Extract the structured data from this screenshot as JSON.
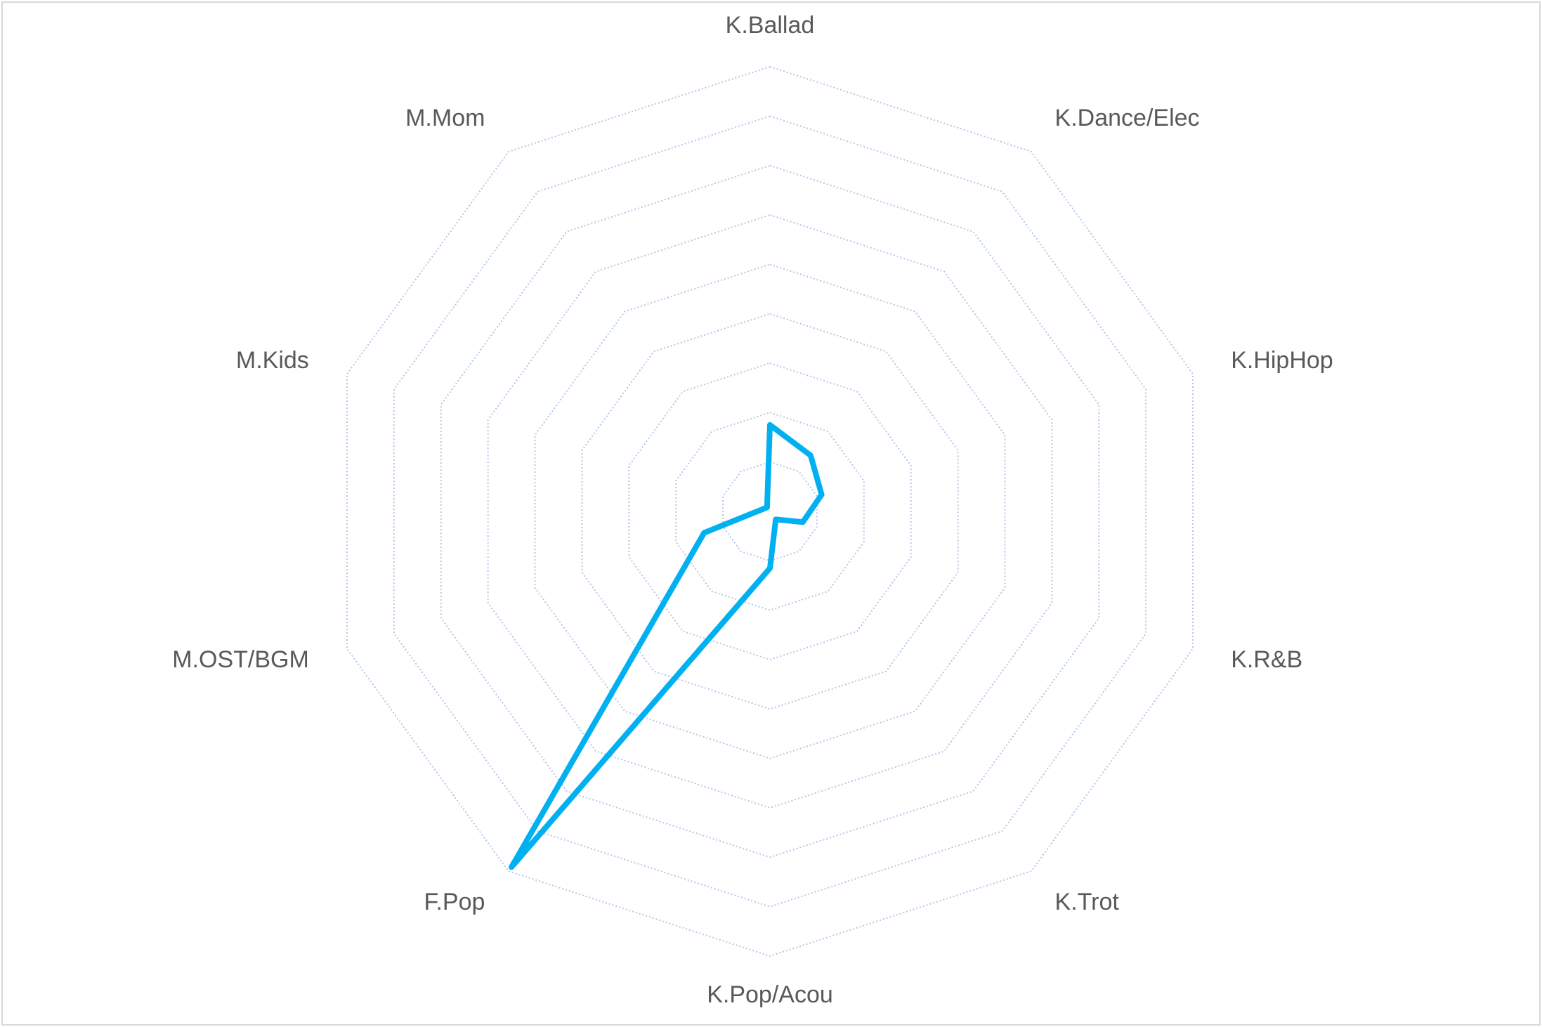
{
  "chart_data": {
    "type": "radar",
    "categories": [
      "K.Ballad",
      "K.Dance/Elec",
      "K.HipHop",
      "K.R&B",
      "K.Trot",
      "K.Pop/Acou",
      "F.Pop",
      "M.OST/BGM",
      "M.Kids",
      "M.Mom"
    ],
    "values": [
      1.75,
      1.4,
      1.1,
      0.7,
      0.2,
      1.15,
      8.9,
      1.4,
      0.15,
      0.1
    ],
    "color": "#00b0f0",
    "rlim": [
      0,
      9
    ],
    "rticks": [
      1,
      2,
      3,
      4,
      5,
      6,
      7,
      8,
      9
    ],
    "grid": true,
    "grid_color": "#b4c7e7"
  }
}
